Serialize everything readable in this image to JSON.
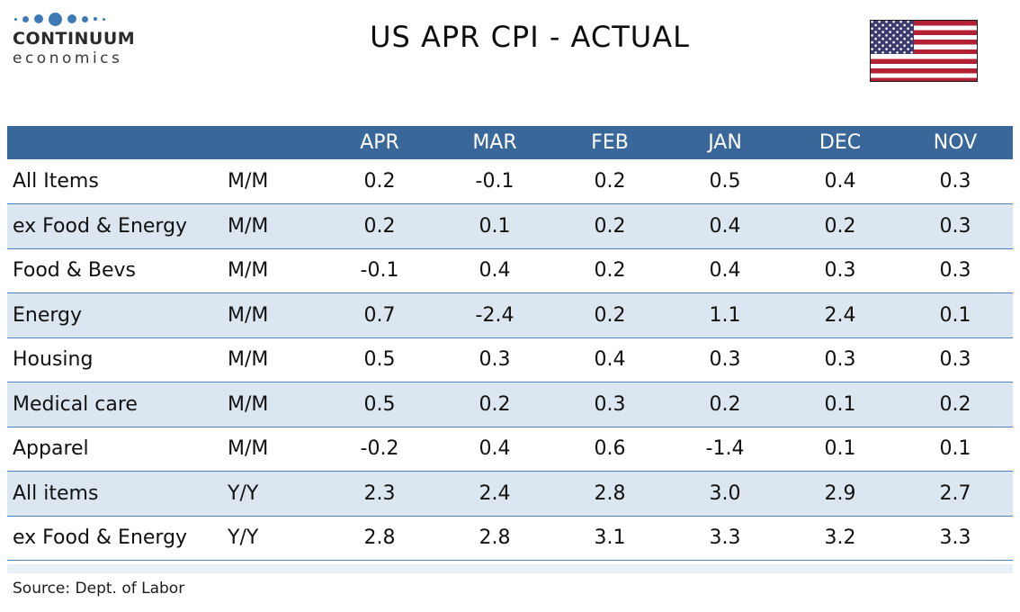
{
  "page": {
    "title": "US APR CPI - ACTUAL",
    "source": "Source: Dept. of Labor"
  },
  "logo": {
    "line1": "CONTINUUM",
    "line2": "economics"
  },
  "chart_data": {
    "type": "table",
    "title": "US APR CPI - ACTUAL",
    "columns": [
      "APR",
      "MAR",
      "FEB",
      "JAN",
      "DEC",
      "NOV"
    ],
    "rows": [
      {
        "label": "All Items",
        "freq": "M/M",
        "values": [
          "0.2",
          "-0.1",
          "0.2",
          "0.5",
          "0.4",
          "0.3"
        ]
      },
      {
        "label": "ex Food & Energy",
        "freq": "M/M",
        "values": [
          "0.2",
          "0.1",
          "0.2",
          "0.4",
          "0.2",
          "0.3"
        ]
      },
      {
        "label": "Food & Bevs",
        "freq": "M/M",
        "values": [
          "-0.1",
          "0.4",
          "0.2",
          "0.4",
          "0.3",
          "0.3"
        ]
      },
      {
        "label": "Energy",
        "freq": "M/M",
        "values": [
          "0.7",
          "-2.4",
          "0.2",
          "1.1",
          "2.4",
          "0.1"
        ]
      },
      {
        "label": "Housing",
        "freq": "M/M",
        "values": [
          "0.5",
          "0.3",
          "0.4",
          "0.3",
          "0.3",
          "0.3"
        ]
      },
      {
        "label": "Medical care",
        "freq": "M/M",
        "values": [
          "0.5",
          "0.2",
          "0.3",
          "0.2",
          "0.1",
          "0.2"
        ]
      },
      {
        "label": "Apparel",
        "freq": "M/M",
        "values": [
          "-0.2",
          "0.4",
          "0.6",
          "-1.4",
          "0.1",
          "0.1"
        ]
      },
      {
        "label": "All items",
        "freq": "Y/Y",
        "values": [
          "2.3",
          "2.4",
          "2.8",
          "3.0",
          "2.9",
          "2.7"
        ]
      },
      {
        "label": "ex Food & Energy",
        "freq": "Y/Y",
        "values": [
          "2.8",
          "2.8",
          "3.1",
          "3.3",
          "3.2",
          "3.3"
        ]
      }
    ],
    "source": "Source: Dept. of Labor",
    "colors": {
      "header_bg": "#39679A",
      "row_alt_bg": "#DCE6F1",
      "row_border": "#4F81BD",
      "logo_dot": "#3D7AB5",
      "flag_red": "#B22234",
      "flag_blue": "#3C3B6E"
    }
  }
}
